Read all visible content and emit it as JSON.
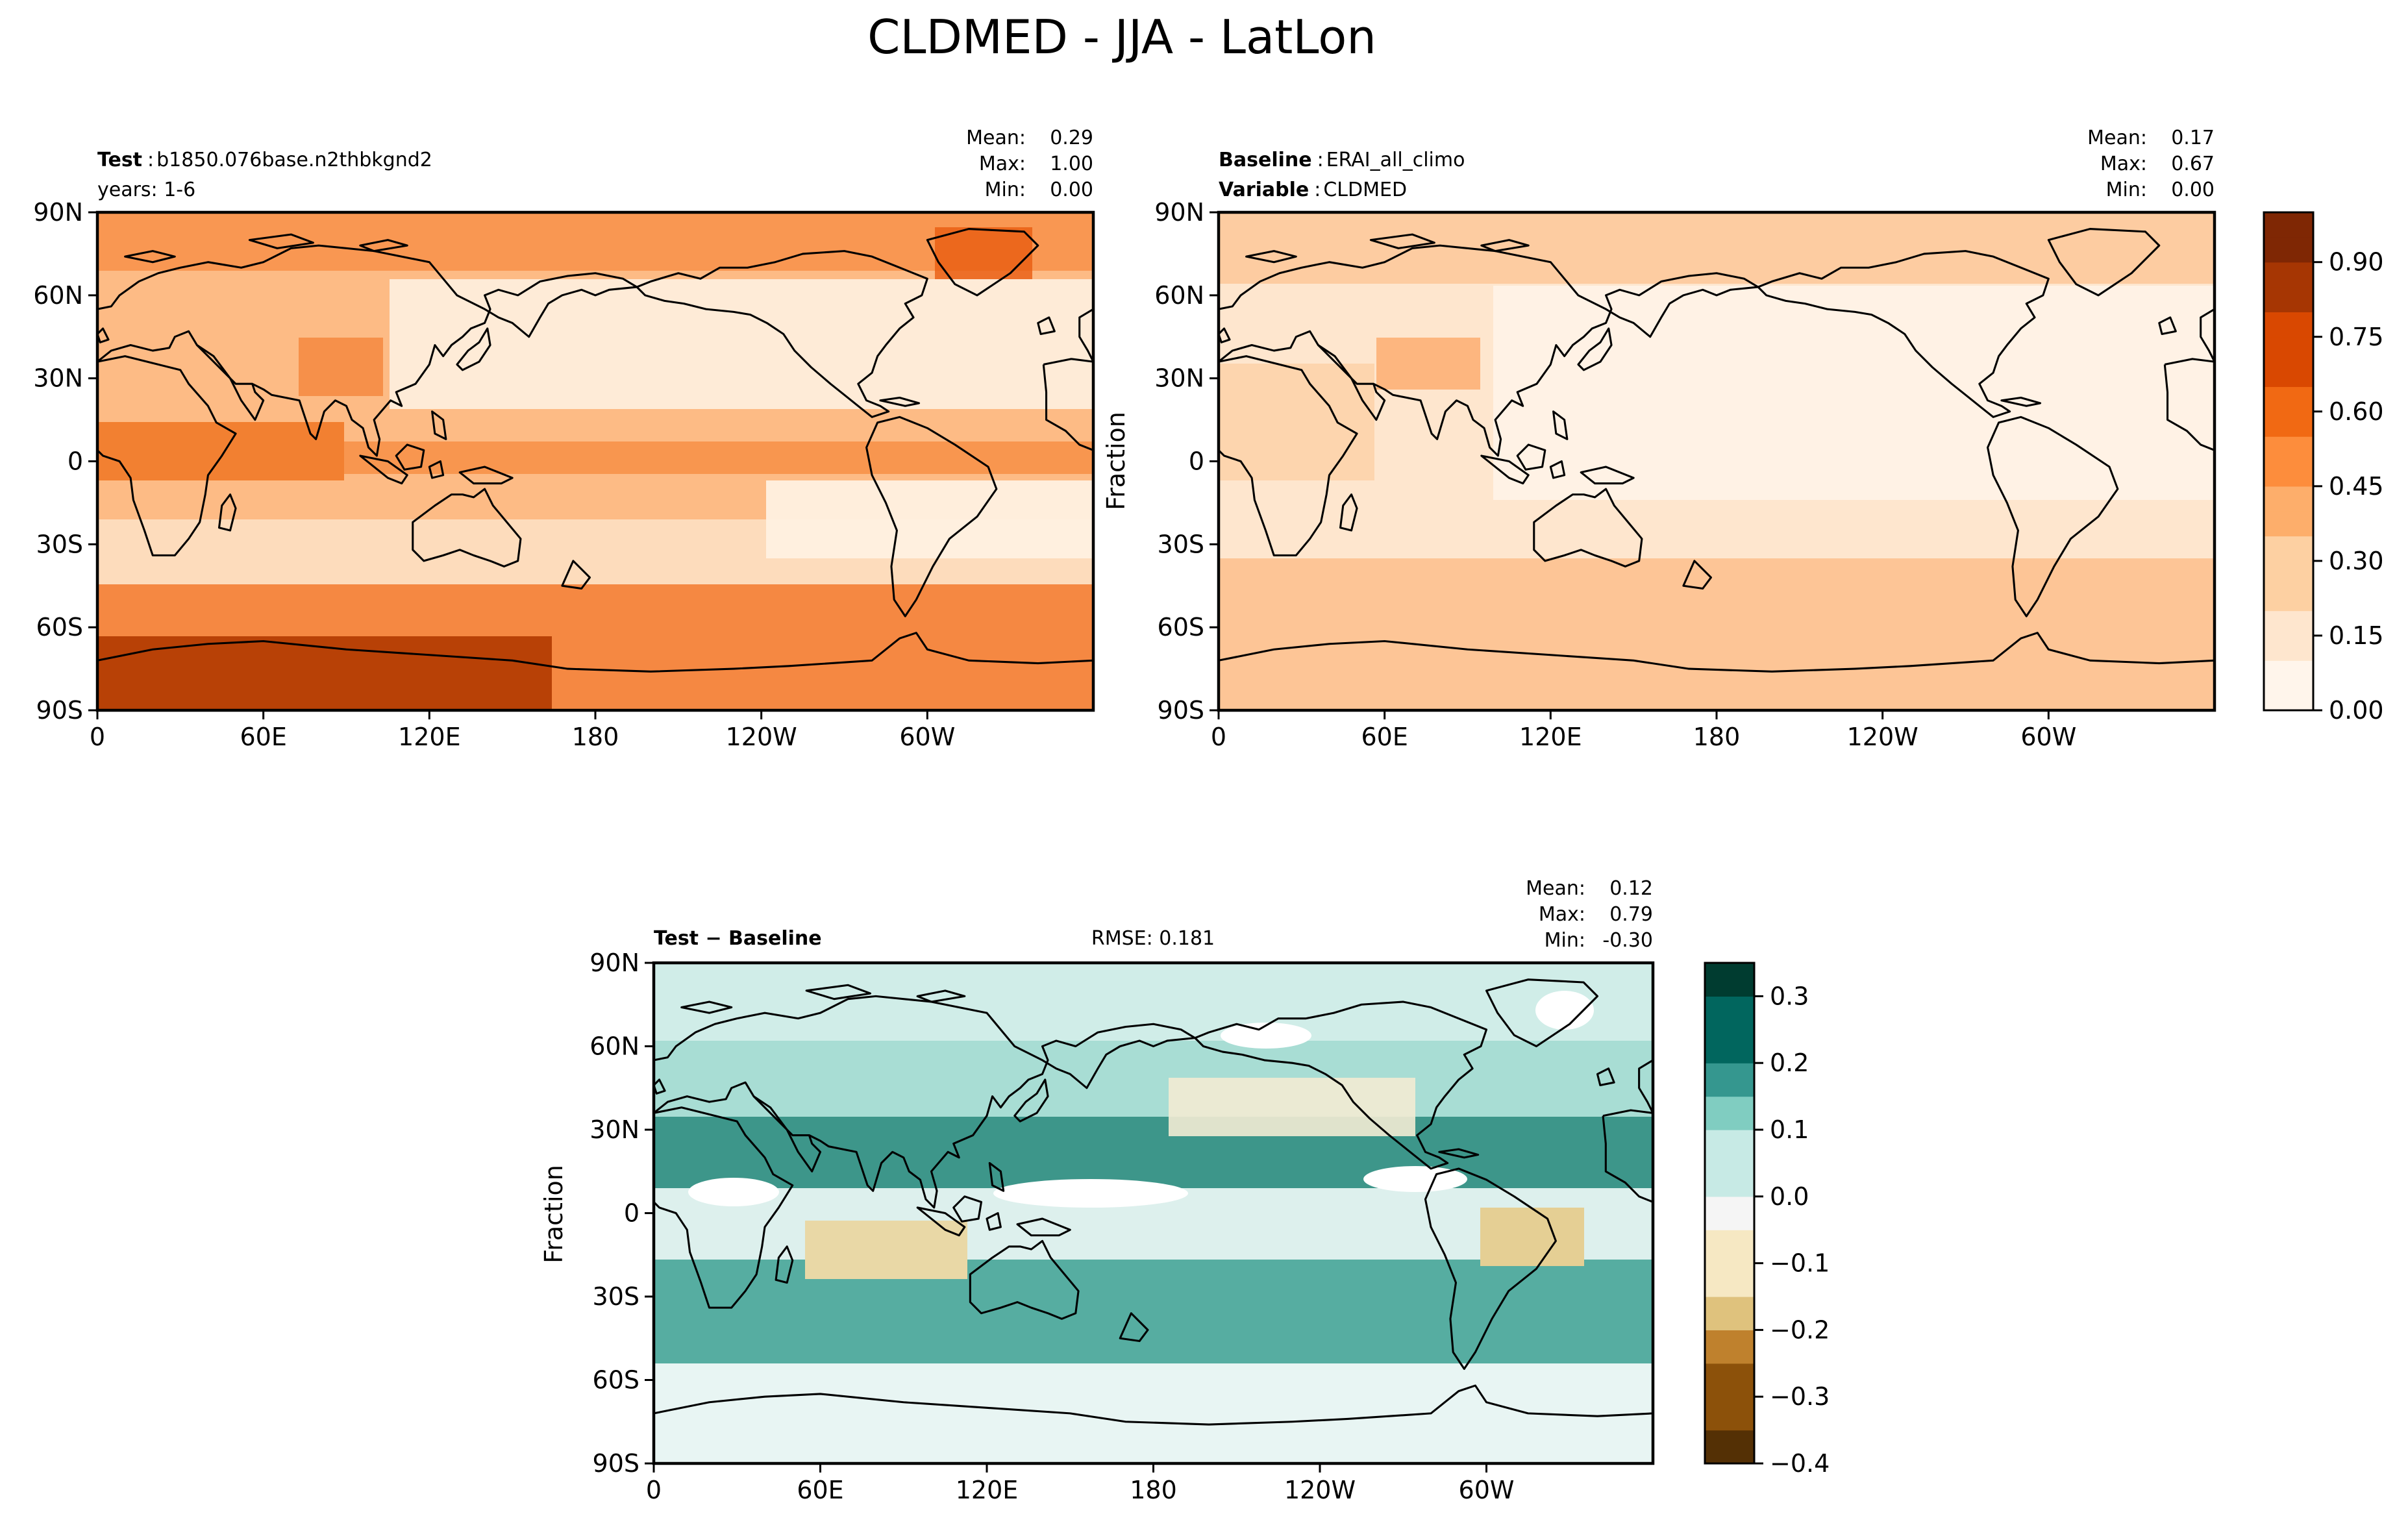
{
  "figure": {
    "title": "CLDMED - JJA - LatLon",
    "colors": {
      "sequential": [
        "#fff5eb",
        "#fee6ce",
        "#fdd0a2",
        "#fdae6b",
        "#fd8d3c",
        "#f16913",
        "#d94801",
        "#a63603",
        "#7f2704"
      ],
      "diverging_neg": [
        "#543005",
        "#8c510a",
        "#bf812d",
        "#dfc27d",
        "#f6e8c3"
      ],
      "diverging_pos": [
        "#c7eae5",
        "#80cdc1",
        "#35978f",
        "#01665e",
        "#003c30"
      ]
    }
  },
  "chart_data": [
    {
      "type": "heatmap",
      "panel": "test",
      "header_bold": "Test",
      "header_sep": ":",
      "header_value": "b1850.076base.n2thbkgnd2",
      "subheader": "years: 1-6",
      "stats": {
        "mean_label": "Mean:",
        "mean": "0.29",
        "max_label": "Max:",
        "max": "1.00",
        "min_label": "Min:",
        "min": "0.00"
      },
      "xticks": [
        "0",
        "60E",
        "120E",
        "180",
        "120W",
        "60W"
      ],
      "yticks": [
        "90N",
        "60N",
        "30N",
        "0",
        "30S",
        "60S",
        "90S"
      ],
      "ylabel": "",
      "xlim": [
        0,
        360
      ],
      "ylim": [
        -90,
        90
      ],
      "value_range": [
        0.0,
        1.0
      ]
    },
    {
      "type": "heatmap",
      "panel": "baseline",
      "header_bold": "Baseline",
      "header_sep": ":",
      "header_value": "ERAI_all_climo",
      "subheader_bold": "Variable",
      "subheader_sep": ":",
      "subheader_value": "CLDMED",
      "stats": {
        "mean_label": "Mean:",
        "mean": "0.17",
        "max_label": "Max:",
        "max": "0.67",
        "min_label": "Min:",
        "min": "0.00"
      },
      "xticks": [
        "0",
        "60E",
        "120E",
        "180",
        "120W",
        "60W"
      ],
      "yticks": [
        "90N",
        "60N",
        "30N",
        "0",
        "30S",
        "60S",
        "90S"
      ],
      "ylabel": "Fraction",
      "xlim": [
        0,
        360
      ],
      "ylim": [
        -90,
        90
      ],
      "value_range": [
        0.0,
        0.67
      ]
    },
    {
      "type": "heatmap",
      "panel": "difference",
      "header_bold": "Test − Baseline",
      "rmse": "RMSE: 0.181",
      "stats": {
        "mean_label": "Mean:",
        "mean": "0.12",
        "max_label": "Max:",
        "max": "0.79",
        "min_label": "Min:",
        "min": "-0.30"
      },
      "xticks": [
        "0",
        "60E",
        "120E",
        "180",
        "120W",
        "60W"
      ],
      "yticks": [
        "90N",
        "60N",
        "30N",
        "0",
        "30S",
        "60S",
        "90S"
      ],
      "ylabel": "Fraction",
      "xlim": [
        0,
        360
      ],
      "ylim": [
        -90,
        90
      ],
      "value_range": [
        -0.3,
        0.79
      ]
    }
  ],
  "colorbars": [
    {
      "name": "sequential",
      "ticks": [
        "0.00",
        "0.15",
        "0.30",
        "0.45",
        "0.60",
        "0.75",
        "0.90"
      ],
      "tick_values": [
        0.0,
        0.15,
        0.3,
        0.45,
        0.6,
        0.75,
        0.9
      ],
      "range": [
        0.0,
        1.0
      ]
    },
    {
      "name": "diverging",
      "ticks": [
        "−0.4",
        "−0.3",
        "−0.2",
        "−0.1",
        "0.0",
        "0.1",
        "0.2",
        "0.3"
      ],
      "tick_values": [
        -0.4,
        -0.3,
        -0.2,
        -0.1,
        0.0,
        0.1,
        0.2,
        0.3
      ],
      "range": [
        -0.4,
        0.35
      ]
    }
  ]
}
